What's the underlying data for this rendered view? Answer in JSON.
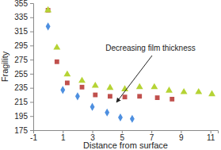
{
  "chart_data": {
    "type": "scatter",
    "x_label": "Distance from surface",
    "y_label": "Fragility",
    "annotation": "Decreasing film thickness",
    "xlim": [
      -1,
      11.5
    ],
    "xticks": [
      -1,
      1,
      3,
      5,
      7,
      9,
      11
    ],
    "ylim": [
      175,
      355
    ],
    "yticks": [
      175,
      195,
      215,
      235,
      255,
      275,
      295,
      315,
      335,
      355
    ],
    "grid": false,
    "series": [
      {
        "color": "#4d8fe0",
        "marker": "diamond",
        "x": [
          0,
          1,
          2,
          3,
          4,
          4.9,
          5.7
        ],
        "values": [
          322,
          232,
          223,
          208,
          200,
          193,
          191
        ]
      },
      {
        "color": "#c0504d",
        "marker": "square",
        "x": [
          0,
          0.6,
          1.3,
          2.3,
          3.2,
          4.2,
          5.2,
          6.2,
          7.4,
          8.4
        ],
        "values": [
          345,
          272,
          242,
          236,
          225,
          223,
          222,
          223,
          221,
          219
        ]
      },
      {
        "color": "#b5d334",
        "marker": "triangle",
        "x": [
          0,
          0.6,
          1.3,
          2.3,
          3.2,
          4.2,
          5.2,
          6.2,
          7.2,
          8.2,
          9.2,
          10.2,
          11.1
        ],
        "values": [
          345,
          292,
          254,
          245,
          238,
          235,
          233,
          236,
          236,
          231,
          229,
          229,
          226
        ]
      }
    ]
  }
}
